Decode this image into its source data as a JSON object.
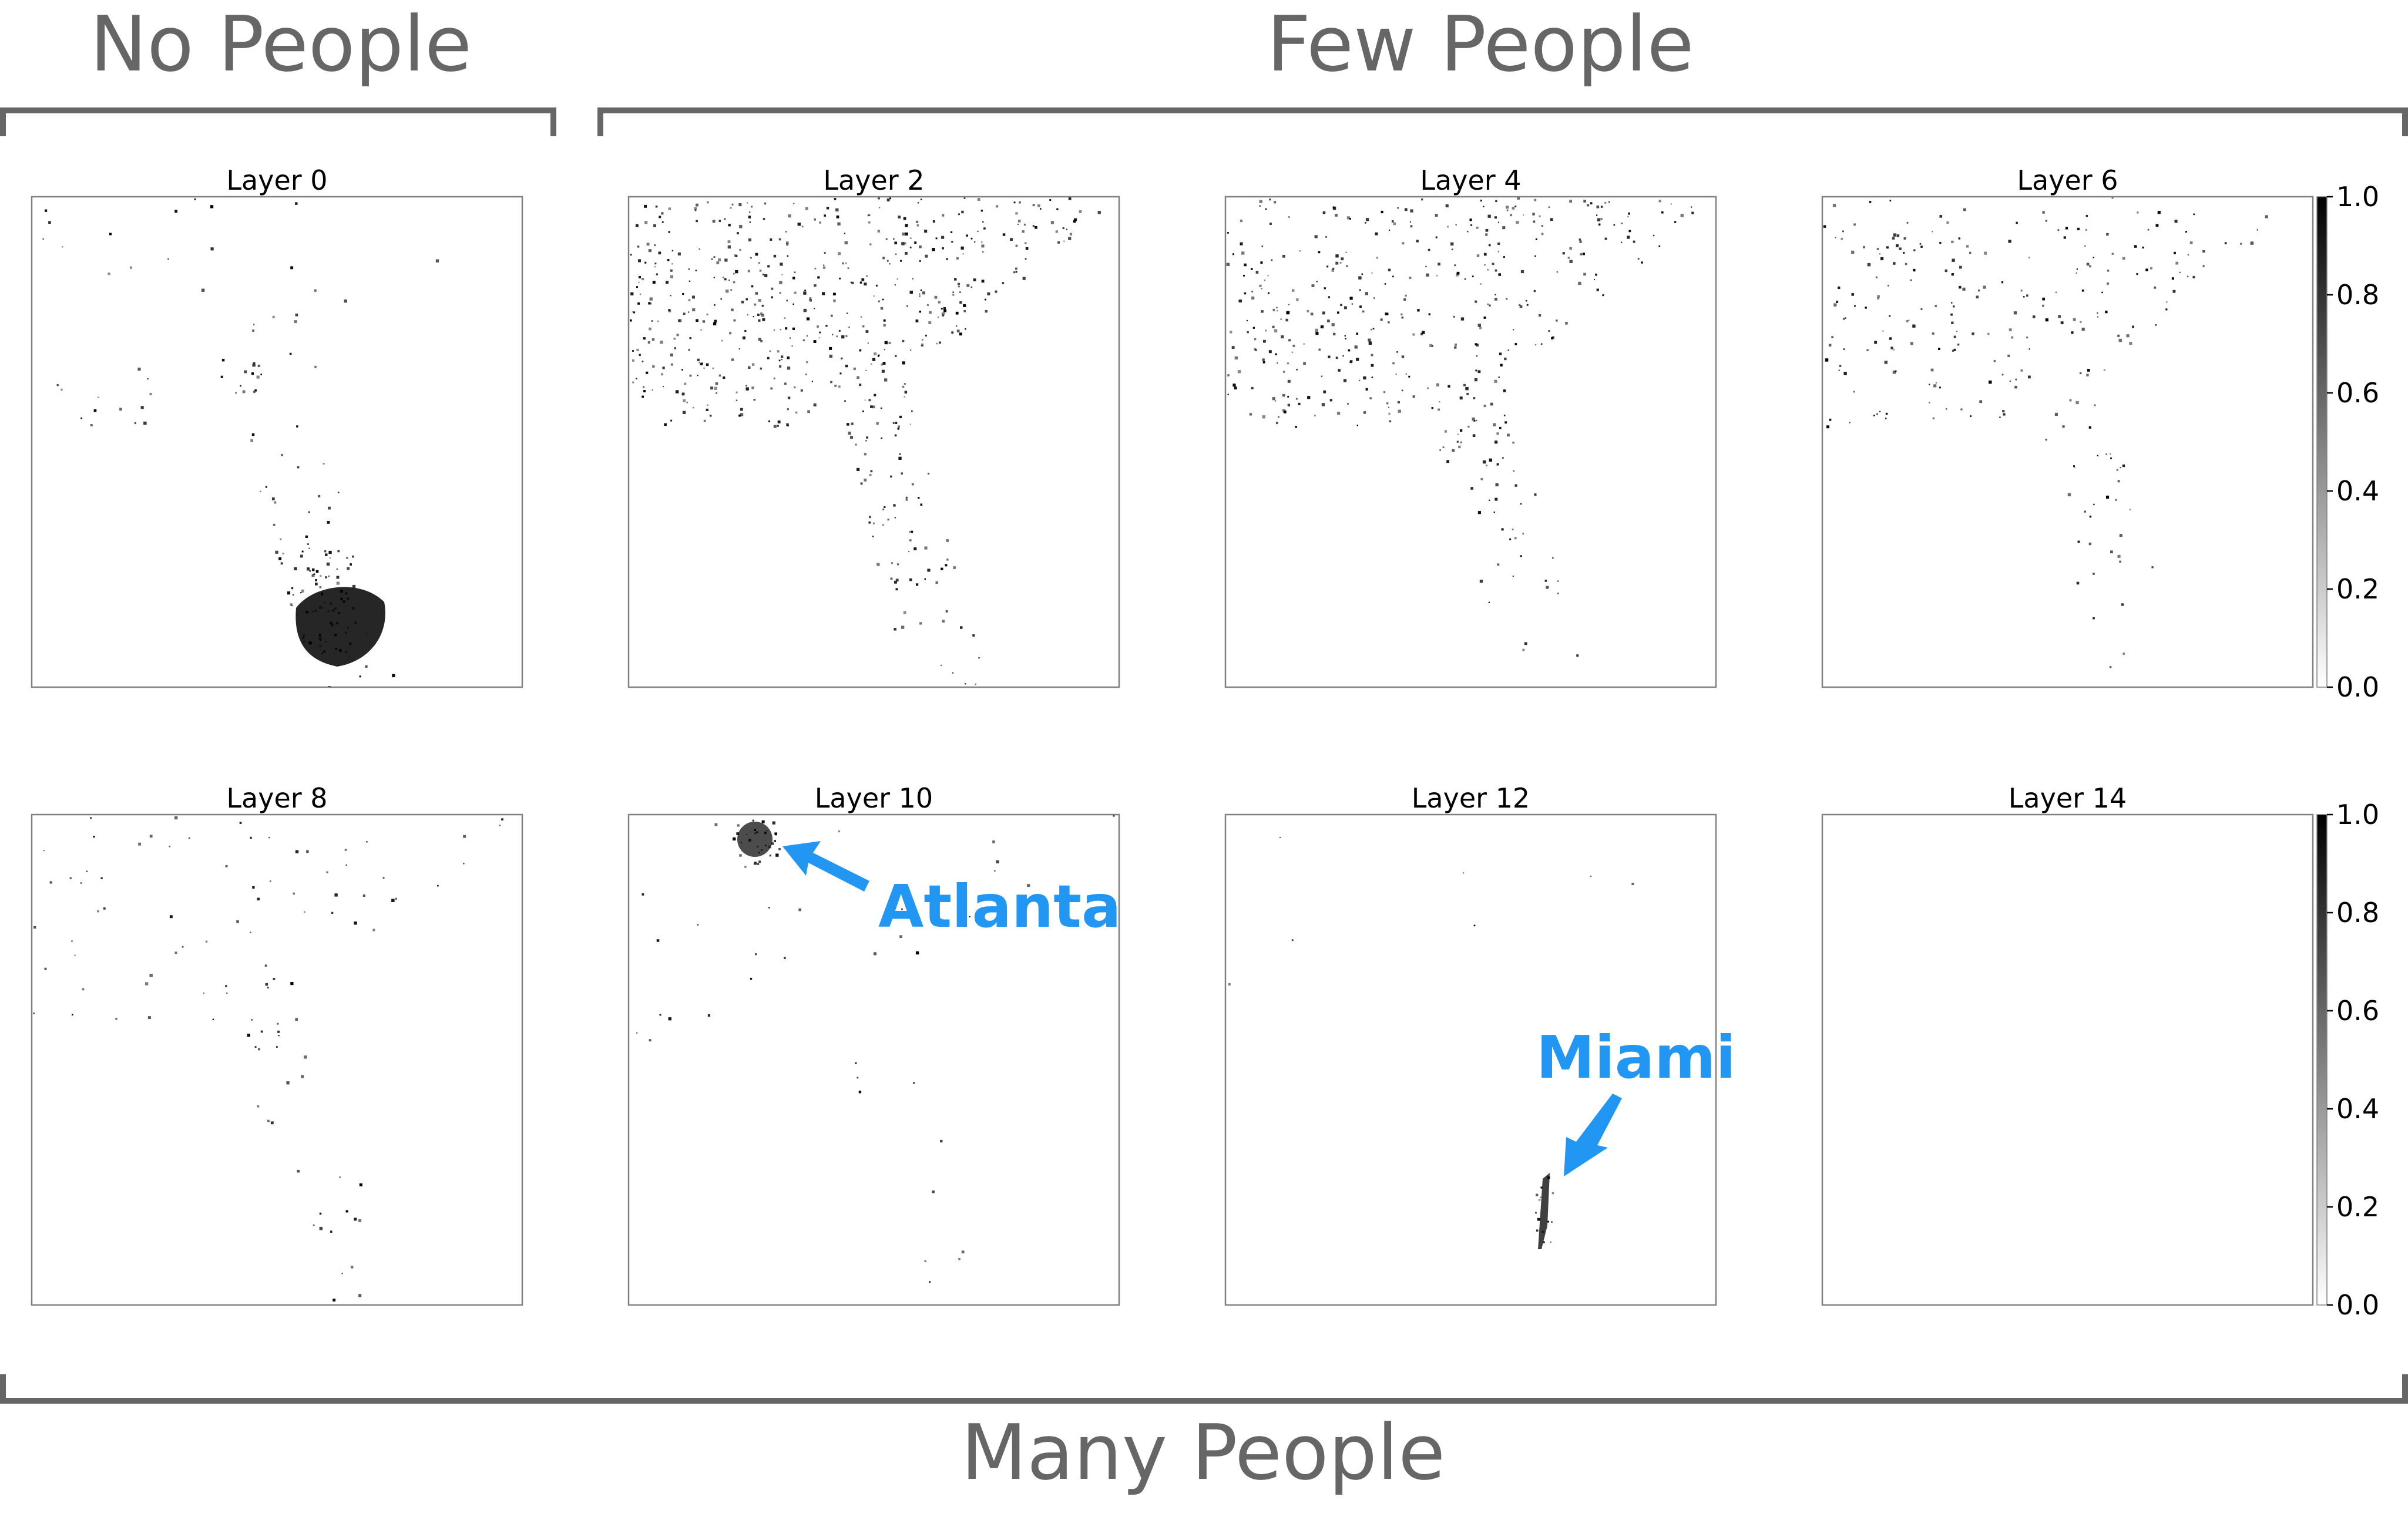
{
  "groups": {
    "no_people": "No People",
    "few_people": "Few People",
    "many_people": "Many People"
  },
  "panels": [
    {
      "title": "Layer 0"
    },
    {
      "title": "Layer 2"
    },
    {
      "title": "Layer 4"
    },
    {
      "title": "Layer 6"
    },
    {
      "title": "Layer 8"
    },
    {
      "title": "Layer 10"
    },
    {
      "title": "Layer 12"
    },
    {
      "title": "Layer 14"
    }
  ],
  "colorbar": {
    "ticks": [
      "1.0",
      "0.8",
      "0.6",
      "0.4",
      "0.2",
      "0.0"
    ],
    "colors": {
      "high": "#000000",
      "low": "#ffffff"
    }
  },
  "annotations": {
    "atlanta": "Atlanta",
    "miami": "Miami"
  },
  "colors": {
    "annotation": "#2196F3",
    "group_text": "#666666",
    "density": "#000000"
  }
}
